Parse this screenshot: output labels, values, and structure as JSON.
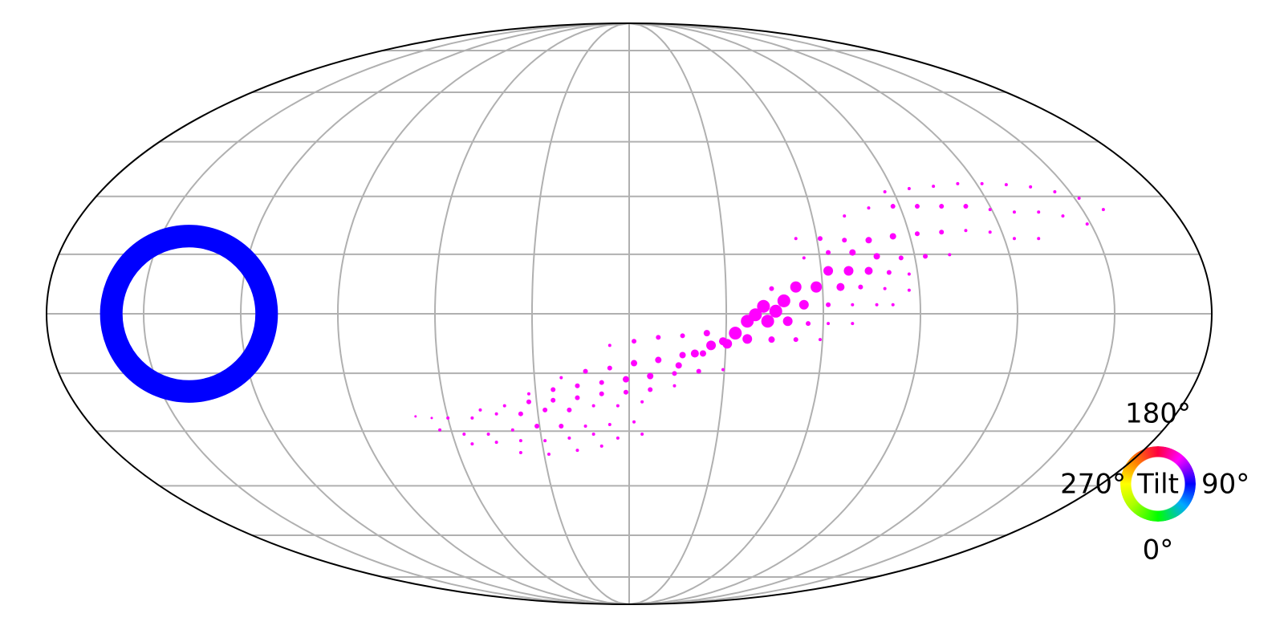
{
  "chart_data": {
    "type": "scatter",
    "projection": "mollweide",
    "grid": true,
    "xlim": [
      -180,
      180
    ],
    "ylim": [
      -90,
      90
    ],
    "ring": {
      "x": -136,
      "y": 0,
      "size": 24,
      "color": "#0000ff"
    },
    "series": [
      {
        "color": "#ff00ff",
        "x": [
          79,
          86.5,
          94,
          101.5,
          109,
          116.5,
          124,
          131.5,
          139,
          146.5,
          66.5,
          74,
          81.5,
          89,
          96.5,
          104,
          111.5,
          119,
          126.5,
          134,
          141.5,
          51.5,
          59,
          66.5,
          74,
          81.5,
          89,
          96.5,
          104,
          111.5,
          119,
          126.5,
          54,
          61.5,
          69,
          76.5,
          84,
          91.5,
          99,
          61.5,
          67.8,
          74,
          80.3,
          86.5,
          44,
          51.5,
          57.8,
          65.3,
          71.5,
          79,
          86.5,
          41.5,
          47.8,
          54,
          61.5,
          69,
          76.5,
          81.5,
          36.5,
          42.8,
          49,
          55.3,
          61.5,
          69,
          29,
          36.5,
          44,
          51.5,
          59,
          32.8,
          30.3,
          25.3,
          20.3,
          15.3,
          39,
          45.3,
          -6,
          1.5,
          9,
          16.5,
          24,
          -21,
          -13.5,
          -6,
          1.5,
          9,
          16.5,
          22.8,
          -31,
          -23.5,
          -16,
          -8.5,
          -1,
          6.5,
          14,
          21.5,
          29,
          -46,
          -38.5,
          -31,
          -23.5,
          -16,
          -8.5,
          -1,
          6.5,
          14,
          -56,
          -48.5,
          -41,
          -33.5,
          -26,
          -18.5,
          -11,
          -3.5,
          4,
          -58.5,
          -51,
          -43.5,
          -36,
          -28.5,
          -21,
          -13.5,
          -6,
          1.5,
          -48.5,
          -41,
          -33.5,
          -26,
          -18.5,
          -11,
          -3.5,
          4,
          -66,
          -61,
          -33.5,
          -24.8,
          -16,
          -8.5
        ],
        "values": [
          37.8,
          38.8,
          39.5,
          40.3,
          40.3,
          40,
          39.3,
          37.8,
          35.8,
          32.3,
          30.3,
          32.8,
          33.3,
          33.3,
          33.3,
          33.3,
          32.3,
          31.5,
          31.5,
          30.3,
          27.8,
          23.3,
          23.3,
          22.8,
          22.8,
          24,
          24.8,
          25.3,
          25.8,
          25.3,
          23.3,
          23.3,
          17.3,
          19,
          19,
          17.8,
          17.3,
          17.8,
          18.3,
          13.3,
          13.3,
          13.3,
          12.8,
          12.3,
          7.8,
          8.3,
          8.3,
          8.3,
          8.3,
          7.8,
          7.3,
          2.3,
          4,
          2.8,
          2.8,
          2.8,
          2.8,
          2.8,
          -2.3,
          -2.3,
          -2.3,
          -3,
          -3,
          -3,
          -8.5,
          -7.8,
          -8,
          -8,
          -8,
          -6,
          -9.3,
          -9.8,
          -12.3,
          -16,
          -0.3,
          0.8,
          -9.8,
          -8.5,
          -7.3,
          -6.8,
          -6,
          -19.8,
          -17.8,
          -16.8,
          -15.3,
          -14.3,
          -12.8,
          -12.3,
          -24.8,
          -23.5,
          -22.3,
          -21.3,
          -20.3,
          -19.3,
          -18.5,
          -17.8,
          -17.3,
          -29.8,
          -28.5,
          -27.3,
          -26.8,
          -26,
          -24.8,
          -24.3,
          -23.5,
          -22.3,
          -32.3,
          -32.3,
          -31,
          -31,
          -29.8,
          -29.8,
          -28.5,
          -28.5,
          -27.3,
          -36,
          -37.3,
          -37.3,
          -36,
          -34.8,
          -34.8,
          -34.8,
          -34.3,
          -33.5,
          -40.3,
          -39.8,
          -39.3,
          -39.3,
          -38.5,
          -37.3,
          -38.5,
          -37.3,
          -31.8,
          -32.3,
          -43,
          -43.5,
          -42.3,
          -41
        ],
        "sizes": [
          2,
          2,
          2,
          2,
          2,
          2,
          2,
          2,
          2,
          2,
          2,
          2,
          3,
          3,
          3,
          3,
          2,
          2,
          2,
          2,
          2,
          2,
          3,
          3,
          4,
          4,
          3,
          3,
          2,
          2,
          2,
          2,
          2,
          3,
          4,
          4,
          3,
          3,
          2,
          6,
          6,
          5,
          3,
          2,
          3,
          7,
          7,
          5,
          3,
          2,
          2,
          8,
          8,
          6,
          3,
          2,
          2,
          2,
          8,
          8,
          6,
          3,
          2,
          2,
          5,
          6,
          4,
          3,
          2,
          8,
          6,
          6,
          5,
          4,
          8,
          8,
          2,
          3,
          3,
          3,
          4,
          2,
          3,
          3,
          4,
          4,
          4,
          4,
          2,
          3,
          3,
          3,
          4,
          4,
          3,
          3,
          2,
          2,
          2,
          3,
          3,
          3,
          3,
          3,
          3,
          2,
          2,
          2,
          2,
          3,
          3,
          3,
          2,
          2,
          2,
          2,
          2,
          2,
          2,
          3,
          3,
          2,
          2,
          2,
          2,
          2,
          2,
          2,
          2,
          2,
          2,
          2,
          1.5,
          1.5,
          2,
          2,
          2,
          2
        ]
      }
    ],
    "colorwheel": {
      "title": "Tilt",
      "labels": [
        "0°",
        "90°",
        "180°",
        "270°"
      ]
    }
  }
}
